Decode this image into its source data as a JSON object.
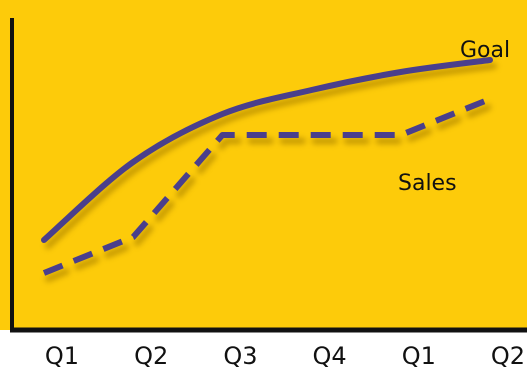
{
  "chart_data": {
    "type": "line",
    "categories": [
      "Q1",
      "Q2",
      "Q3",
      "Q4",
      "Q1",
      "Q2"
    ],
    "series": [
      {
        "name": "Goal",
        "style": "solid",
        "values": [
          20,
          46,
          62,
          70,
          76,
          80
        ]
      },
      {
        "name": "Sales",
        "style": "dashed",
        "values": [
          9,
          21,
          55,
          55,
          55,
          67
        ]
      }
    ],
    "ylim": [
      0,
      100
    ],
    "title": "",
    "xlabel": "",
    "ylabel": "",
    "grid": false,
    "legend": "inline labels"
  },
  "colors": {
    "plot_background": "#FDCB0A",
    "line": "#4A3F8C",
    "axis": "#111111",
    "shadow": "#B98F00"
  }
}
